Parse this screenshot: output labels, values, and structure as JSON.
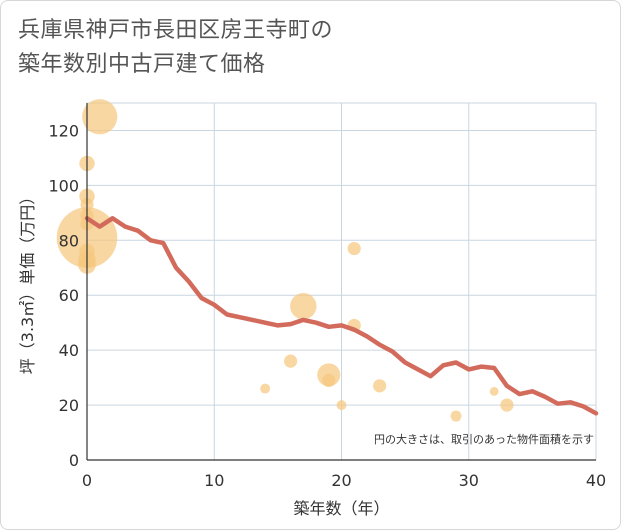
{
  "title_lines": [
    "兵庫県神戸市長田区房王寺町の",
    "築年数別中古戸建て価格"
  ],
  "chart_data": {
    "type": "scatter+line",
    "xlabel": "築年数（年）",
    "ylabel": "坪（3.3㎡）単価（万円）",
    "xlim": [
      0,
      40
    ],
    "ylim": [
      0,
      130
    ],
    "xticks": [
      0,
      10,
      20,
      30,
      40
    ],
    "yticks": [
      0,
      20,
      40,
      60,
      80,
      100,
      120
    ],
    "grid": true,
    "note": "円の大きさは、取引のあった物件面積を示す",
    "colors": {
      "bubble": "#f5c77e",
      "line": "#d36b5c",
      "grid": "#c9d6e0",
      "axis": "#333333"
    },
    "bubbles": [
      {
        "x": 1,
        "y": 125,
        "size": 3.2
      },
      {
        "x": 0,
        "y": 108,
        "size": 1.4
      },
      {
        "x": 0,
        "y": 96,
        "size": 1.4
      },
      {
        "x": 0,
        "y": 93,
        "size": 1.2
      },
      {
        "x": 0,
        "y": 89,
        "size": 1.2
      },
      {
        "x": 0,
        "y": 86,
        "size": 1.2
      },
      {
        "x": 0,
        "y": 81,
        "size": 5.5
      },
      {
        "x": 0,
        "y": 76,
        "size": 1.4
      },
      {
        "x": 0,
        "y": 73,
        "size": 1.6
      },
      {
        "x": 0,
        "y": 71,
        "size": 1.6
      },
      {
        "x": 14,
        "y": 26,
        "size": 0.9
      },
      {
        "x": 16,
        "y": 36,
        "size": 1.2
      },
      {
        "x": 17,
        "y": 56,
        "size": 2.4
      },
      {
        "x": 19,
        "y": 31,
        "size": 2.1
      },
      {
        "x": 19,
        "y": 29,
        "size": 1.2
      },
      {
        "x": 20,
        "y": 20,
        "size": 0.9
      },
      {
        "x": 21,
        "y": 77,
        "size": 1.2
      },
      {
        "x": 21,
        "y": 49,
        "size": 1.2
      },
      {
        "x": 23,
        "y": 27,
        "size": 1.2
      },
      {
        "x": 29,
        "y": 16,
        "size": 1.0
      },
      {
        "x": 32,
        "y": 25,
        "size": 0.8
      },
      {
        "x": 33,
        "y": 20,
        "size": 1.2
      }
    ],
    "line": {
      "x": [
        0,
        1,
        2,
        3,
        4,
        5,
        6,
        7,
        8,
        9,
        10,
        11,
        12,
        13,
        14,
        15,
        16,
        17,
        18,
        19,
        20,
        21,
        22,
        23,
        24,
        25,
        26,
        27,
        28,
        29,
        30,
        31,
        32,
        33,
        34,
        35,
        36,
        37,
        38,
        39,
        40
      ],
      "y": [
        88,
        85,
        88,
        85,
        83.5,
        80,
        79,
        70,
        65,
        59,
        56.5,
        53,
        52,
        51,
        50,
        49,
        49.5,
        51,
        50,
        48.5,
        49,
        47.5,
        45,
        42,
        39.5,
        35.5,
        33,
        30.5,
        34.5,
        35.5,
        33,
        34,
        33.5,
        27,
        24,
        25,
        23,
        20.5,
        21,
        19.5,
        17
      ]
    }
  }
}
